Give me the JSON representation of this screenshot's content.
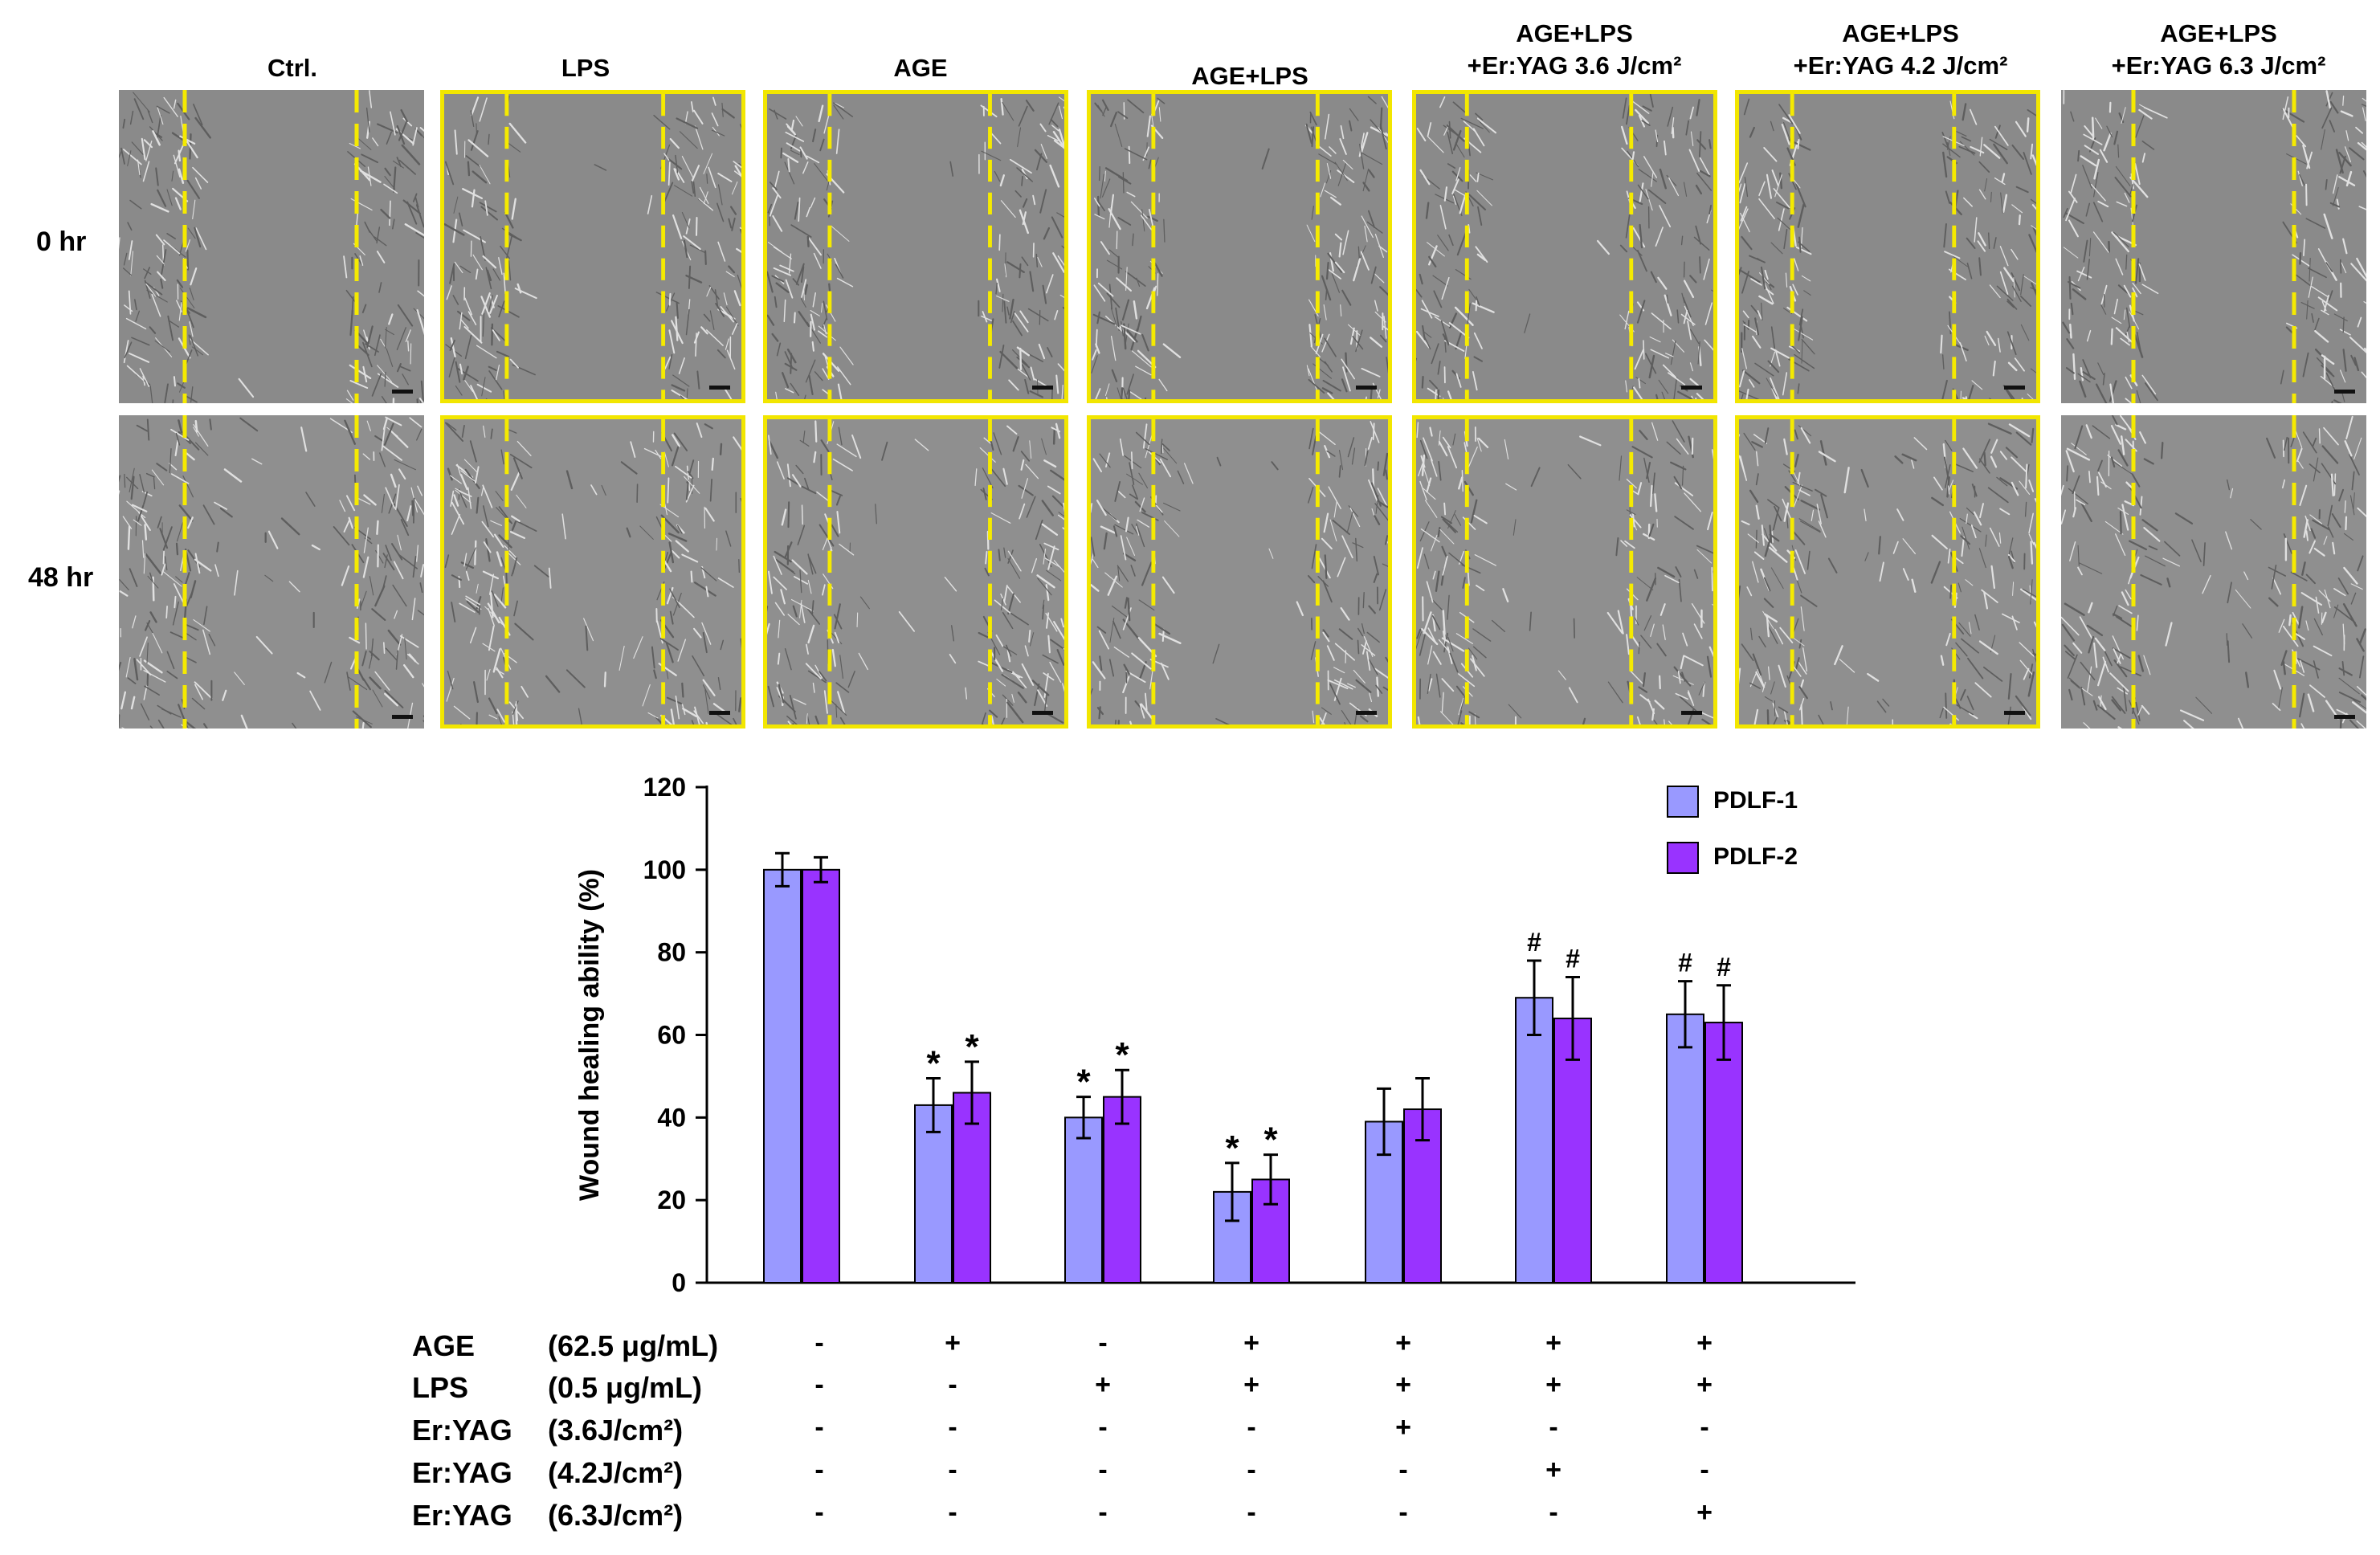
{
  "figure": {
    "columns": [
      {
        "title_lines": [
          "Ctrl."
        ]
      },
      {
        "title_lines": [
          "LPS"
        ]
      },
      {
        "title_lines": [
          "AGE"
        ]
      },
      {
        "title_lines": [
          "AGE+LPS"
        ]
      },
      {
        "title_lines": [
          "AGE+LPS",
          "+Er:YAG 3.6 J/cm²"
        ]
      },
      {
        "title_lines": [
          "AGE+LPS",
          "+Er:YAG 4.2 J/cm²"
        ]
      },
      {
        "title_lines": [
          "AGE+LPS",
          "+Er:YAG 6.3 J/cm²"
        ]
      }
    ],
    "rows": [
      "0 hr",
      "48 hr"
    ],
    "colors": {
      "frame": "#f2e600",
      "cut_line": "#f5ea00",
      "micrograph_bg": "#8c8c8c",
      "cells": "#d9d9d9"
    }
  },
  "chart_data": {
    "type": "bar",
    "ylabel": "Wound healing ability (%)",
    "ylim": [
      0,
      120
    ],
    "yticks": [
      0,
      20,
      40,
      60,
      80,
      100,
      120
    ],
    "legend_position": "top-right",
    "categories": [
      "Ctrl.",
      "AGE",
      "LPS",
      "AGE+LPS",
      "AGE+LPS+Er:YAG 3.6 J/cm²",
      "AGE+LPS+Er:YAG 4.2 J/cm²",
      "AGE+LPS+Er:YAG 6.3 J/cm²"
    ],
    "series": [
      {
        "name": "PDLF-1",
        "color": "#9999ff",
        "values": [
          100,
          43,
          40,
          22,
          39,
          69,
          65
        ],
        "errors": [
          4,
          6.5,
          5,
          7,
          8,
          9,
          8
        ],
        "annotations": [
          "",
          "*",
          "*",
          "*",
          "",
          "#",
          "#"
        ]
      },
      {
        "name": "PDLF-2",
        "color": "#9933ff",
        "values": [
          100,
          46,
          45,
          25,
          42,
          64,
          63
        ],
        "errors": [
          3,
          7.5,
          6.5,
          6,
          7.5,
          10,
          9
        ],
        "annotations": [
          "",
          "*",
          "*",
          "*",
          "",
          "#",
          "#"
        ]
      }
    ],
    "conditions": [
      {
        "name": "AGE",
        "conc": "(62.5 μg/mL)",
        "signs": [
          "-",
          "+",
          "-",
          "+",
          "+",
          "+",
          "+"
        ]
      },
      {
        "name": "LPS",
        "conc": "(0.5 μg/mL)",
        "signs": [
          "-",
          "-",
          "+",
          "+",
          "+",
          "+",
          "+"
        ]
      },
      {
        "name": "Er:YAG",
        "conc": "(3.6J/cm²)",
        "signs": [
          "-",
          "-",
          "-",
          "-",
          "+",
          "-",
          "-"
        ]
      },
      {
        "name": "Er:YAG",
        "conc": "(4.2J/cm²)",
        "signs": [
          "-",
          "-",
          "-",
          "-",
          "-",
          "+",
          "-"
        ]
      },
      {
        "name": "Er:YAG",
        "conc": "(6.3J/cm²)",
        "signs": [
          "-",
          "-",
          "-",
          "-",
          "-",
          "-",
          "+"
        ]
      }
    ]
  }
}
